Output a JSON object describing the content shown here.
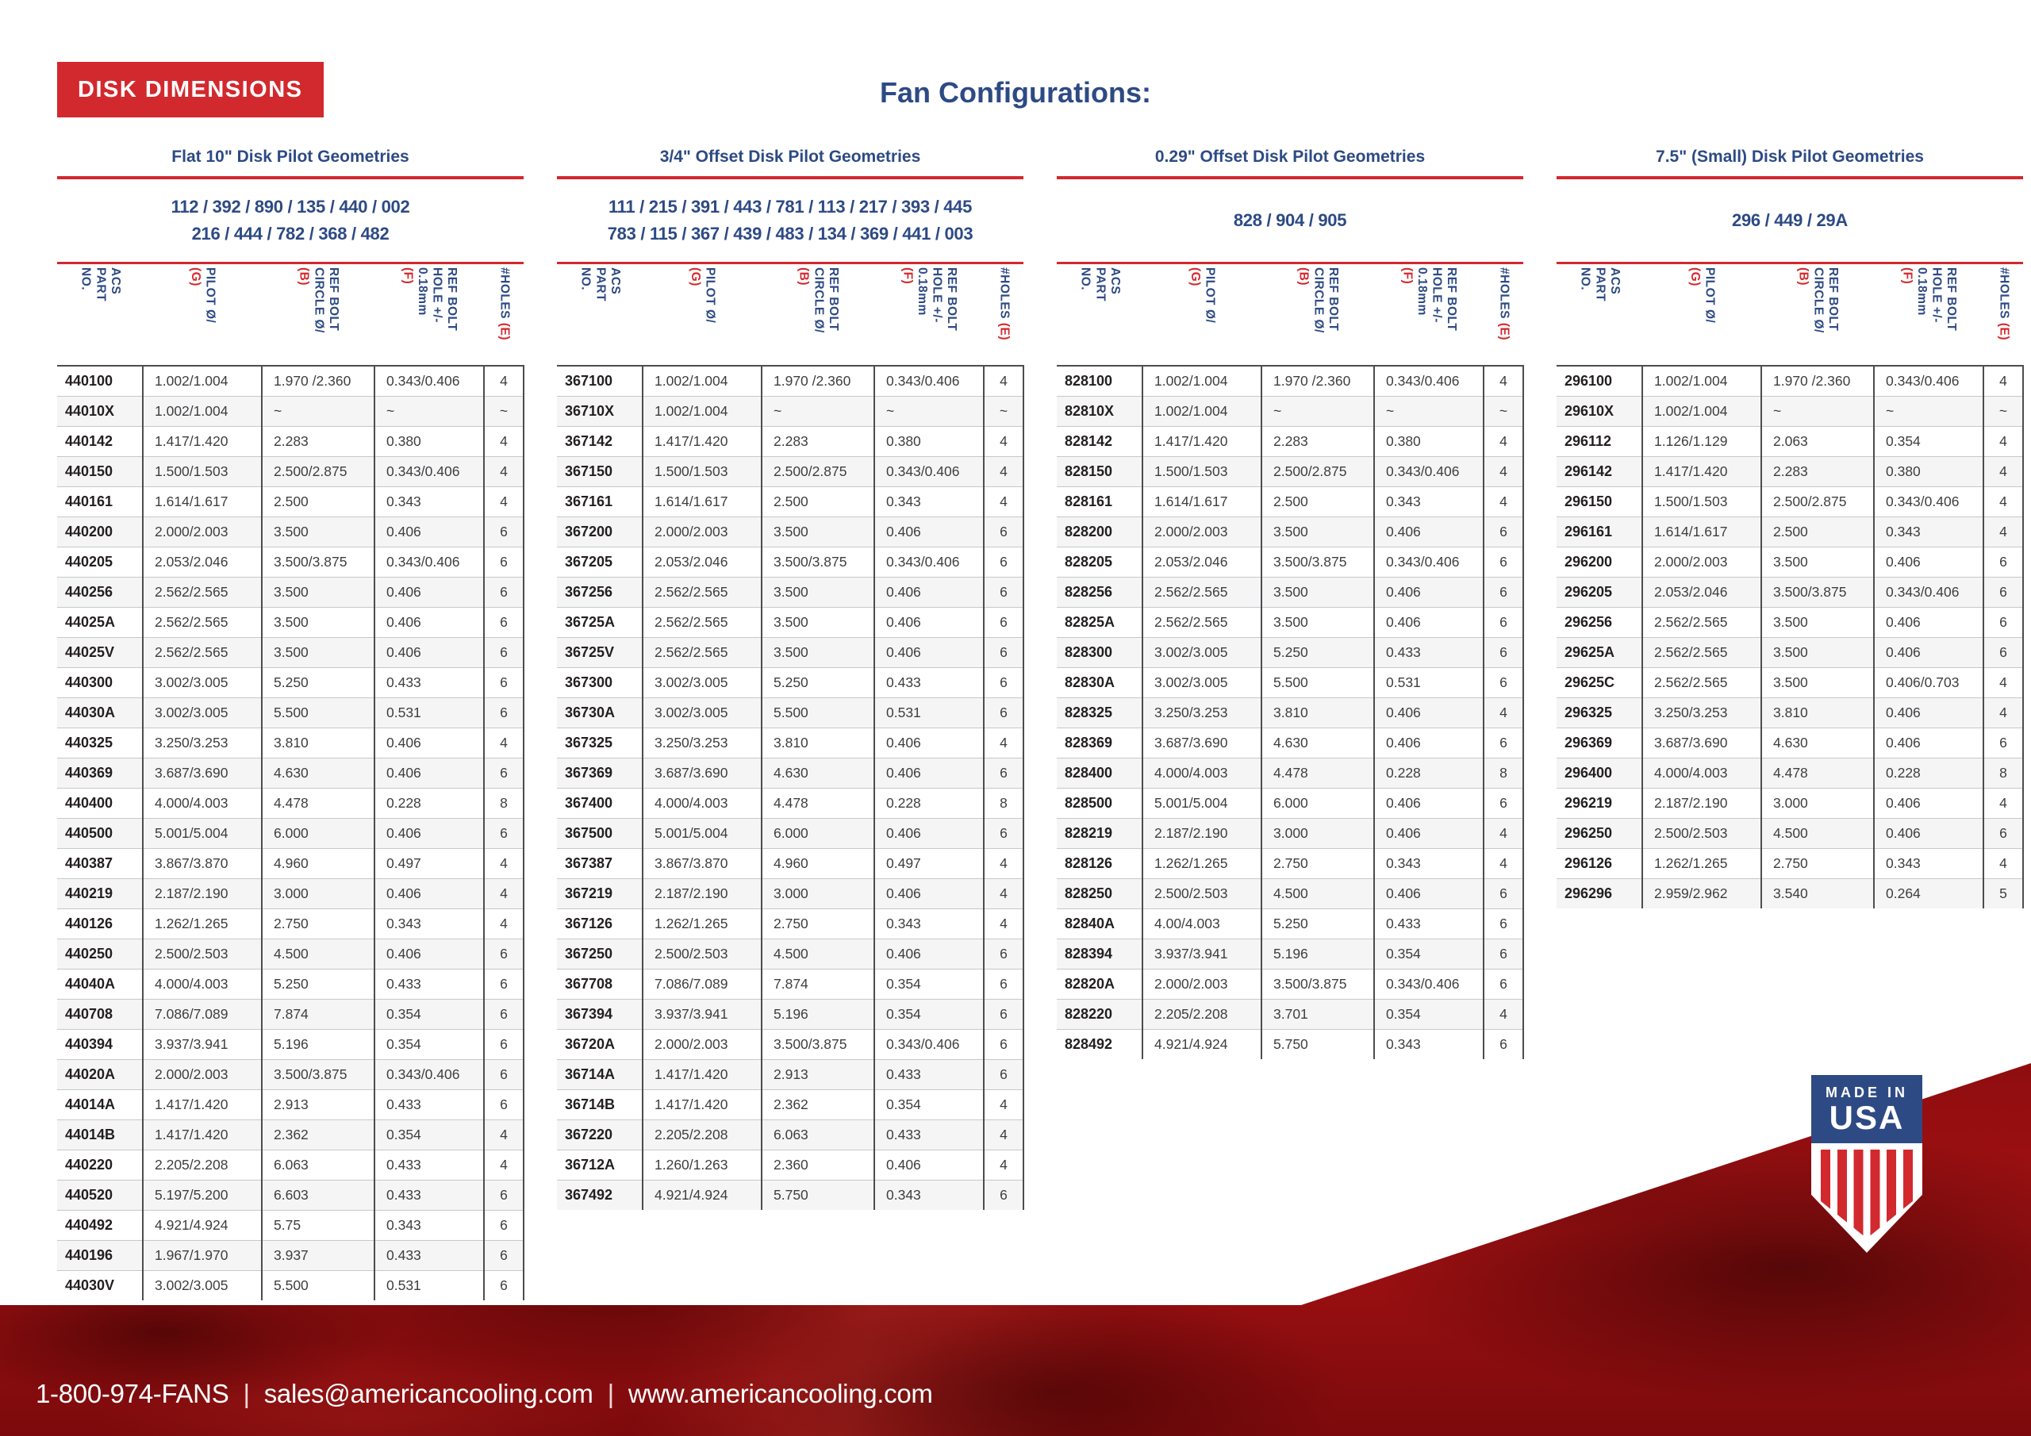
{
  "badge": "DISK DIMENSIONS",
  "page_title": "Fan Configurations:",
  "colors": {
    "navy": "#2d4a84",
    "red": "#d2292e",
    "footer_red": "#a31113",
    "text_dark": "#231f20"
  },
  "columns": [
    {
      "name": "acs-part-no",
      "lines": [
        [
          {
            "t": "ACS",
            "c": "blue"
          }
        ],
        [
          {
            "t": "PART",
            "c": "blue"
          }
        ],
        [
          {
            "t": "NO.",
            "c": "blue"
          }
        ]
      ]
    },
    {
      "name": "pilot-diameter",
      "lines": [
        [
          {
            "t": "PILOT Ø/",
            "c": "blue"
          }
        ],
        [
          {
            "t": "(G)",
            "c": "red"
          }
        ]
      ]
    },
    {
      "name": "ref-bolt-circle",
      "lines": [
        [
          {
            "t": "REF BOLT",
            "c": "blue"
          }
        ],
        [
          {
            "t": "CIRCLE Ø/",
            "c": "blue"
          }
        ],
        [
          {
            "t": "(B)",
            "c": "red"
          }
        ]
      ]
    },
    {
      "name": "ref-bolt-hole",
      "lines": [
        [
          {
            "t": "REF BOLT",
            "c": "blue"
          }
        ],
        [
          {
            "t": "HOLE +/-",
            "c": "blue"
          }
        ],
        [
          {
            "t": "0.18mm",
            "c": "blue"
          }
        ],
        [
          {
            "t": "(F)",
            "c": "red"
          }
        ]
      ]
    },
    {
      "name": "num-holes",
      "lines": [
        [
          {
            "t": "#HOLES ",
            "c": "blue"
          },
          {
            "t": "(E)",
            "c": "red"
          }
        ]
      ]
    }
  ],
  "sections": [
    {
      "title": "Flat 10\" Disk Pilot Geometries",
      "subtitle_lines": [
        "112 / 392 / 890 / 135 / 440 / 002",
        "216 / 444 / 782 / 368 / 482"
      ],
      "rows": [
        [
          "440100",
          "1.002/1.004",
          "1.970 /2.360",
          "0.343/0.406",
          "4"
        ],
        [
          "44010X",
          "1.002/1.004",
          "~",
          "~",
          "~"
        ],
        [
          "440142",
          "1.417/1.420",
          "2.283",
          "0.380",
          "4"
        ],
        [
          "440150",
          "1.500/1.503",
          "2.500/2.875",
          "0.343/0.406",
          "4"
        ],
        [
          "440161",
          "1.614/1.617",
          "2.500",
          "0.343",
          "4"
        ],
        [
          "440200",
          "2.000/2.003",
          "3.500",
          "0.406",
          "6"
        ],
        [
          "440205",
          "2.053/2.046",
          "3.500/3.875",
          "0.343/0.406",
          "6"
        ],
        [
          "440256",
          "2.562/2.565",
          "3.500",
          "0.406",
          "6"
        ],
        [
          "44025A",
          "2.562/2.565",
          "3.500",
          "0.406",
          "6"
        ],
        [
          "44025V",
          "2.562/2.565",
          "3.500",
          "0.406",
          "6"
        ],
        [
          "440300",
          "3.002/3.005",
          "5.250",
          "0.433",
          "6"
        ],
        [
          "44030A",
          "3.002/3.005",
          "5.500",
          "0.531",
          "6"
        ],
        [
          "440325",
          "3.250/3.253",
          "3.810",
          "0.406",
          "4"
        ],
        [
          "440369",
          "3.687/3.690",
          "4.630",
          "0.406",
          "6"
        ],
        [
          "440400",
          "4.000/4.003",
          "4.478",
          "0.228",
          "8"
        ],
        [
          "440500",
          "5.001/5.004",
          "6.000",
          "0.406",
          "6"
        ],
        [
          "440387",
          "3.867/3.870",
          "4.960",
          "0.497",
          "4"
        ],
        [
          "440219",
          "2.187/2.190",
          "3.000",
          "0.406",
          "4"
        ],
        [
          "440126",
          "1.262/1.265",
          "2.750",
          "0.343",
          "4"
        ],
        [
          "440250",
          "2.500/2.503",
          "4.500",
          "0.406",
          "6"
        ],
        [
          "44040A",
          "4.000/4.003",
          "5.250",
          "0.433",
          "6"
        ],
        [
          "440708",
          "7.086/7.089",
          "7.874",
          "0.354",
          "6"
        ],
        [
          "440394",
          "3.937/3.941",
          "5.196",
          "0.354",
          "6"
        ],
        [
          "44020A",
          "2.000/2.003",
          "3.500/3.875",
          "0.343/0.406",
          "6"
        ],
        [
          "44014A",
          "1.417/1.420",
          "2.913",
          "0.433",
          "6"
        ],
        [
          "44014B",
          "1.417/1.420",
          "2.362",
          "0.354",
          "4"
        ],
        [
          "440220",
          "2.205/2.208",
          "6.063",
          "0.433",
          "4"
        ],
        [
          "440520",
          "5.197/5.200",
          "6.603",
          "0.433",
          "6"
        ],
        [
          "440492",
          "4.921/4.924",
          "5.75",
          "0.343",
          "6"
        ],
        [
          "440196",
          "1.967/1.970",
          "3.937",
          "0.433",
          "6"
        ],
        [
          "44030V",
          "3.002/3.005",
          "5.500",
          "0.531",
          "6"
        ]
      ]
    },
    {
      "title": "3/4\" Offset Disk Pilot Geometries",
      "subtitle_lines": [
        "111 / 215 / 391 / 443 / 781 / 113 / 217 / 393 / 445",
        "783 / 115 / 367 / 439 / 483 / 134 / 369 / 441 / 003"
      ],
      "rows": [
        [
          "367100",
          "1.002/1.004",
          "1.970 /2.360",
          "0.343/0.406",
          "4"
        ],
        [
          "36710X",
          "1.002/1.004",
          "~",
          "~",
          "~"
        ],
        [
          "367142",
          "1.417/1.420",
          "2.283",
          "0.380",
          "4"
        ],
        [
          "367150",
          "1.500/1.503",
          "2.500/2.875",
          "0.343/0.406",
          "4"
        ],
        [
          "367161",
          "1.614/1.617",
          "2.500",
          "0.343",
          "4"
        ],
        [
          "367200",
          "2.000/2.003",
          "3.500",
          "0.406",
          "6"
        ],
        [
          "367205",
          "2.053/2.046",
          "3.500/3.875",
          "0.343/0.406",
          "6"
        ],
        [
          "367256",
          "2.562/2.565",
          "3.500",
          "0.406",
          "6"
        ],
        [
          "36725A",
          "2.562/2.565",
          "3.500",
          "0.406",
          "6"
        ],
        [
          "36725V",
          "2.562/2.565",
          "3.500",
          "0.406",
          "6"
        ],
        [
          "367300",
          "3.002/3.005",
          "5.250",
          "0.433",
          "6"
        ],
        [
          "36730A",
          "3.002/3.005",
          "5.500",
          "0.531",
          "6"
        ],
        [
          "367325",
          "3.250/3.253",
          "3.810",
          "0.406",
          "4"
        ],
        [
          "367369",
          "3.687/3.690",
          "4.630",
          "0.406",
          "6"
        ],
        [
          "367400",
          "4.000/4.003",
          "4.478",
          "0.228",
          "8"
        ],
        [
          "367500",
          "5.001/5.004",
          "6.000",
          "0.406",
          "6"
        ],
        [
          "367387",
          "3.867/3.870",
          "4.960",
          "0.497",
          "4"
        ],
        [
          "367219",
          "2.187/2.190",
          "3.000",
          "0.406",
          "4"
        ],
        [
          "367126",
          "1.262/1.265",
          "2.750",
          "0.343",
          "4"
        ],
        [
          "367250",
          "2.500/2.503",
          "4.500",
          "0.406",
          "6"
        ],
        [
          "367708",
          "7.086/7.089",
          "7.874",
          "0.354",
          "6"
        ],
        [
          "367394",
          "3.937/3.941",
          "5.196",
          "0.354",
          "6"
        ],
        [
          "36720A",
          "2.000/2.003",
          "3.500/3.875",
          "0.343/0.406",
          "6"
        ],
        [
          "36714A",
          "1.417/1.420",
          "2.913",
          "0.433",
          "6"
        ],
        [
          "36714B",
          "1.417/1.420",
          "2.362",
          "0.354",
          "4"
        ],
        [
          "367220",
          "2.205/2.208",
          "6.063",
          "0.433",
          "4"
        ],
        [
          "36712A",
          "1.260/1.263",
          "2.360",
          "0.406",
          "4"
        ],
        [
          "367492",
          "4.921/4.924",
          "5.750",
          "0.343",
          "6"
        ]
      ]
    },
    {
      "title": "0.29\" Offset Disk Pilot Geometries",
      "subtitle_lines": [
        "828 / 904 / 905"
      ],
      "rows": [
        [
          "828100",
          "1.002/1.004",
          "1.970 /2.360",
          "0.343/0.406",
          "4"
        ],
        [
          "82810X",
          "1.002/1.004",
          "~",
          "~",
          "~"
        ],
        [
          "828142",
          "1.417/1.420",
          "2.283",
          "0.380",
          "4"
        ],
        [
          "828150",
          "1.500/1.503",
          "2.500/2.875",
          "0.343/0.406",
          "4"
        ],
        [
          "828161",
          "1.614/1.617",
          "2.500",
          "0.343",
          "4"
        ],
        [
          "828200",
          "2.000/2.003",
          "3.500",
          "0.406",
          "6"
        ],
        [
          "828205",
          "2.053/2.046",
          "3.500/3.875",
          "0.343/0.406",
          "6"
        ],
        [
          "828256",
          "2.562/2.565",
          "3.500",
          "0.406",
          "6"
        ],
        [
          "82825A",
          "2.562/2.565",
          "3.500",
          "0.406",
          "6"
        ],
        [
          "828300",
          "3.002/3.005",
          "5.250",
          "0.433",
          "6"
        ],
        [
          "82830A",
          "3.002/3.005",
          "5.500",
          "0.531",
          "6"
        ],
        [
          "828325",
          "3.250/3.253",
          "3.810",
          "0.406",
          "4"
        ],
        [
          "828369",
          "3.687/3.690",
          "4.630",
          "0.406",
          "6"
        ],
        [
          "828400",
          "4.000/4.003",
          "4.478",
          "0.228",
          "8"
        ],
        [
          "828500",
          "5.001/5.004",
          "6.000",
          "0.406",
          "6"
        ],
        [
          "828219",
          "2.187/2.190",
          "3.000",
          "0.406",
          "4"
        ],
        [
          "828126",
          "1.262/1.265",
          "2.750",
          "0.343",
          "4"
        ],
        [
          "828250",
          "2.500/2.503",
          "4.500",
          "0.406",
          "6"
        ],
        [
          "82840A",
          "4.00/4.003",
          "5.250",
          "0.433",
          "6"
        ],
        [
          "828394",
          "3.937/3.941",
          "5.196",
          "0.354",
          "6"
        ],
        [
          "82820A",
          "2.000/2.003",
          "3.500/3.875",
          "0.343/0.406",
          "6"
        ],
        [
          "828220",
          "2.205/2.208",
          "3.701",
          "0.354",
          "4"
        ],
        [
          "828492",
          "4.921/4.924",
          "5.750",
          "0.343",
          "6"
        ]
      ]
    },
    {
      "title": "7.5\" (Small) Disk Pilot Geometries",
      "subtitle_lines": [
        "296 / 449 / 29A"
      ],
      "rows": [
        [
          "296100",
          "1.002/1.004",
          "1.970 /2.360",
          "0.343/0.406",
          "4"
        ],
        [
          "29610X",
          "1.002/1.004",
          "~",
          "~",
          "~"
        ],
        [
          "296112",
          "1.126/1.129",
          "2.063",
          "0.354",
          "4"
        ],
        [
          "296142",
          "1.417/1.420",
          "2.283",
          "0.380",
          "4"
        ],
        [
          "296150",
          "1.500/1.503",
          "2.500/2.875",
          "0.343/0.406",
          "4"
        ],
        [
          "296161",
          "1.614/1.617",
          "2.500",
          "0.343",
          "4"
        ],
        [
          "296200",
          "2.000/2.003",
          "3.500",
          "0.406",
          "6"
        ],
        [
          "296205",
          "2.053/2.046",
          "3.500/3.875",
          "0.343/0.406",
          "6"
        ],
        [
          "296256",
          "2.562/2.565",
          "3.500",
          "0.406",
          "6"
        ],
        [
          "29625A",
          "2.562/2.565",
          "3.500",
          "0.406",
          "6"
        ],
        [
          "29625C",
          "2.562/2.565",
          "3.500",
          "0.406/0.703",
          "4"
        ],
        [
          "296325",
          "3.250/3.253",
          "3.810",
          "0.406",
          "4"
        ],
        [
          "296369",
          "3.687/3.690",
          "4.630",
          "0.406",
          "6"
        ],
        [
          "296400",
          "4.000/4.003",
          "4.478",
          "0.228",
          "8"
        ],
        [
          "296219",
          "2.187/2.190",
          "3.000",
          "0.406",
          "4"
        ],
        [
          "296250",
          "2.500/2.503",
          "4.500",
          "0.406",
          "6"
        ],
        [
          "296126",
          "1.262/1.265",
          "2.750",
          "0.343",
          "4"
        ],
        [
          "296296",
          "2.959/2.962",
          "3.540",
          "0.264",
          "5"
        ]
      ]
    }
  ],
  "footer": {
    "phone": "1-800-974-FANS",
    "separator": "|",
    "email": "sales@americancooling.com",
    "website": "www.americancooling.com"
  },
  "usa_badge": {
    "line1": "MADE IN",
    "line2": "USA"
  }
}
